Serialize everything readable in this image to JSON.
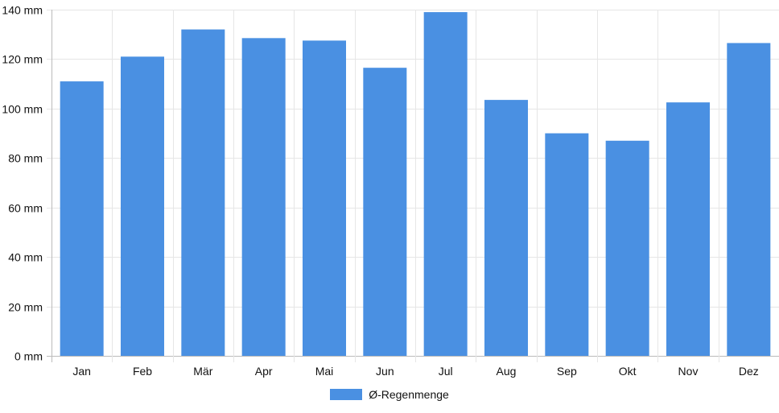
{
  "chart_data": {
    "type": "bar",
    "title": "",
    "xlabel": "",
    "ylabel": "",
    "unit": "mm",
    "categories": [
      "Jan",
      "Feb",
      "Mär",
      "Apr",
      "Mai",
      "Jun",
      "Jul",
      "Aug",
      "Sep",
      "Okt",
      "Nov",
      "Dez"
    ],
    "series": [
      {
        "name": "Ø-Regenmenge",
        "color": "#4a90e2",
        "values": [
          111,
          121,
          132,
          128.5,
          127.5,
          116.5,
          139,
          103.5,
          90,
          87,
          102.5,
          126.5
        ]
      }
    ],
    "ylim": [
      0,
      140
    ],
    "yticks": [
      0,
      20,
      40,
      60,
      80,
      100,
      120,
      140
    ],
    "ytick_labels": [
      "0 mm",
      "20 mm",
      "40 mm",
      "60 mm",
      "80 mm",
      "100 mm",
      "120 mm",
      "140 mm"
    ],
    "grid": true,
    "legend_position": "bottom"
  }
}
